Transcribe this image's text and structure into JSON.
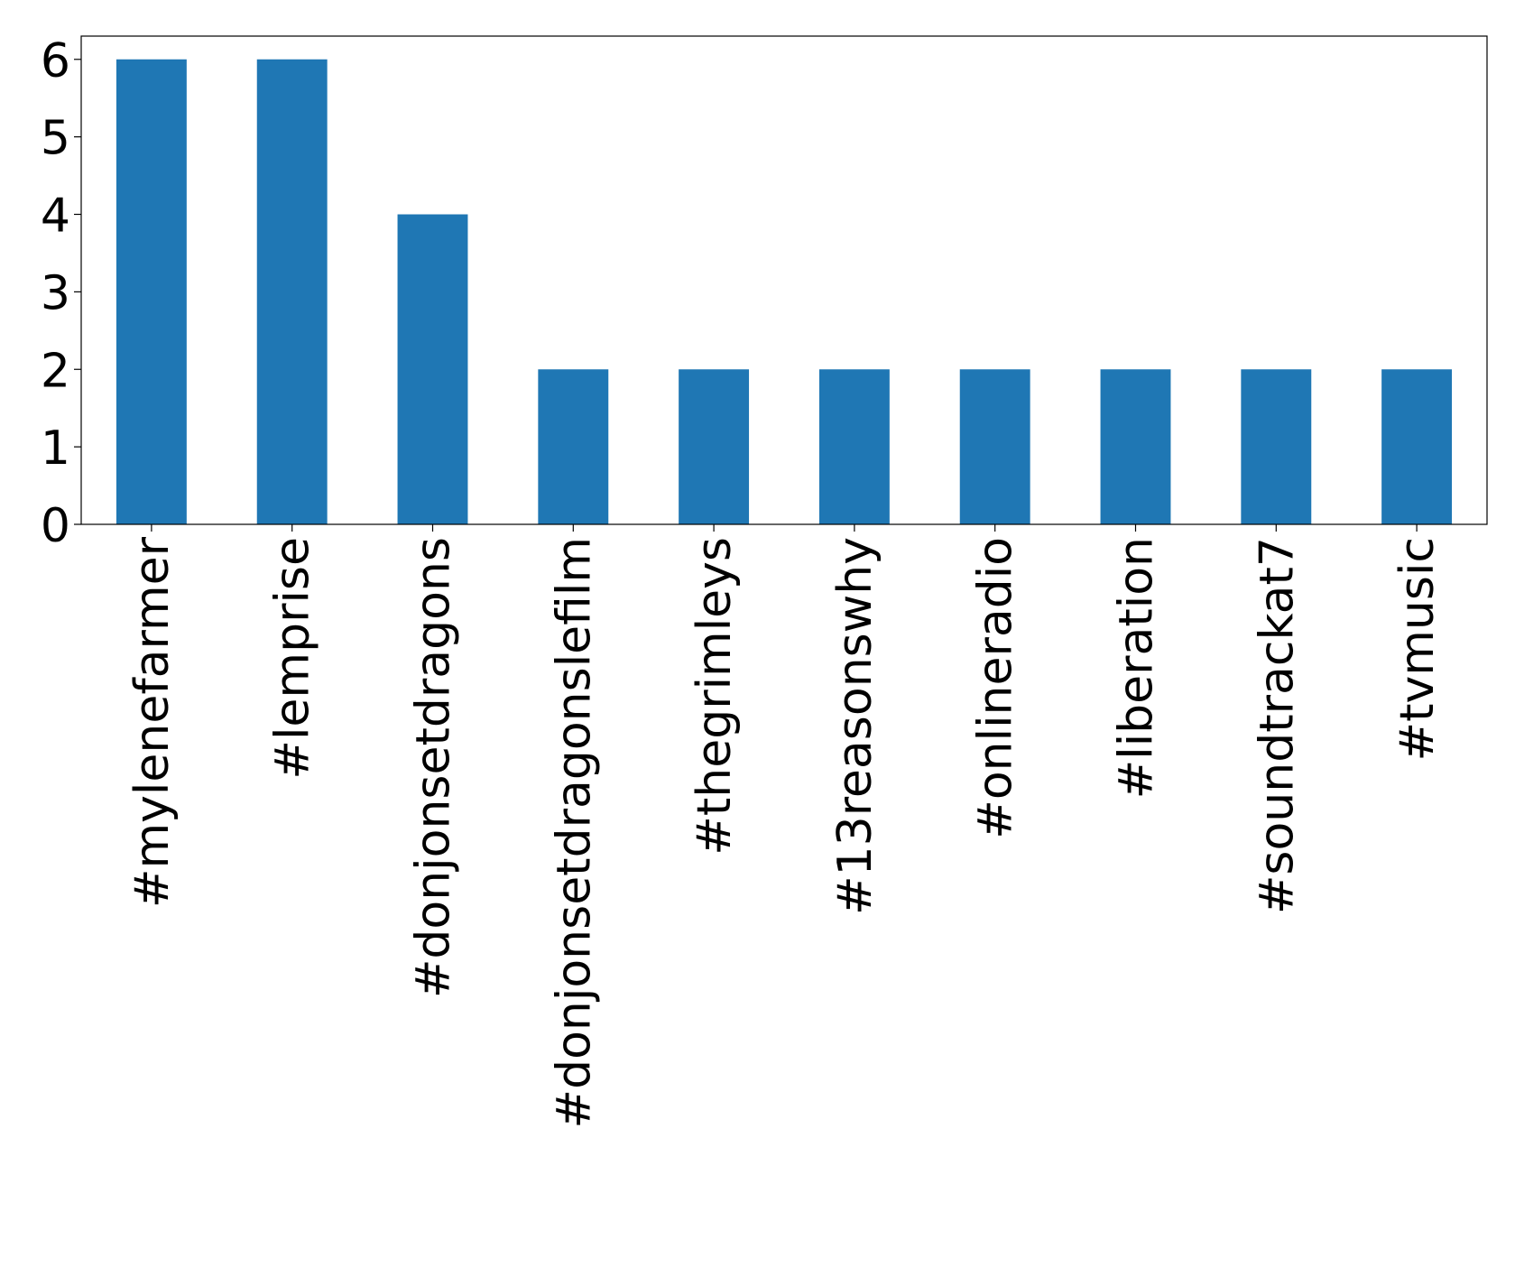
{
  "chart_data": {
    "type": "bar",
    "categories": [
      "#mylenefarmer",
      "#lemprise",
      "#donjonsetdragons",
      "#donjonsetdragonslefilm",
      "#thegrimleys",
      "#13reasonswhy",
      "#onlineradio",
      "#liberation",
      "#soundtrackat7",
      "#tvmusic"
    ],
    "values": [
      6,
      6,
      4,
      2,
      2,
      2,
      2,
      2,
      2,
      2
    ],
    "color": "#1f77b4",
    "ylim": [
      0,
      6.3
    ],
    "yticks": [
      0,
      1,
      2,
      3,
      4,
      5,
      6
    ],
    "grid": false
  }
}
